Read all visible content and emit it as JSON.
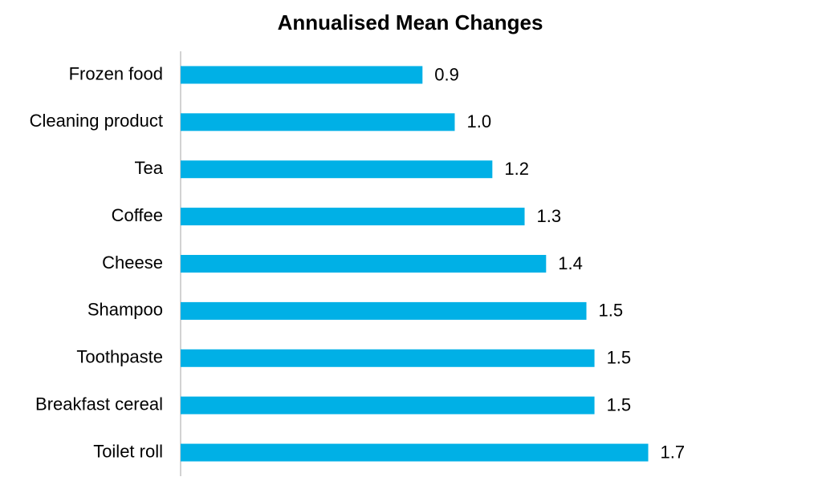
{
  "chart_data": {
    "type": "barh",
    "title": "Annualised Mean Changes",
    "categories": [
      "Frozen food",
      "Cleaning product",
      "Tea",
      "Coffee",
      "Cheese",
      "Shampoo",
      "Toothpaste",
      "Breakfast cereal",
      "Toilet roll"
    ],
    "values": [
      0.9,
      1.02,
      1.16,
      1.28,
      1.36,
      1.51,
      1.54,
      1.54,
      1.74
    ],
    "value_labels": [
      "0.9",
      "1.0",
      "1.2",
      "1.3",
      "1.4",
      "1.5",
      "1.5",
      "1.5",
      "1.7"
    ],
    "color": "#00b0e6",
    "xlim": [
      0,
      2.3
    ]
  }
}
